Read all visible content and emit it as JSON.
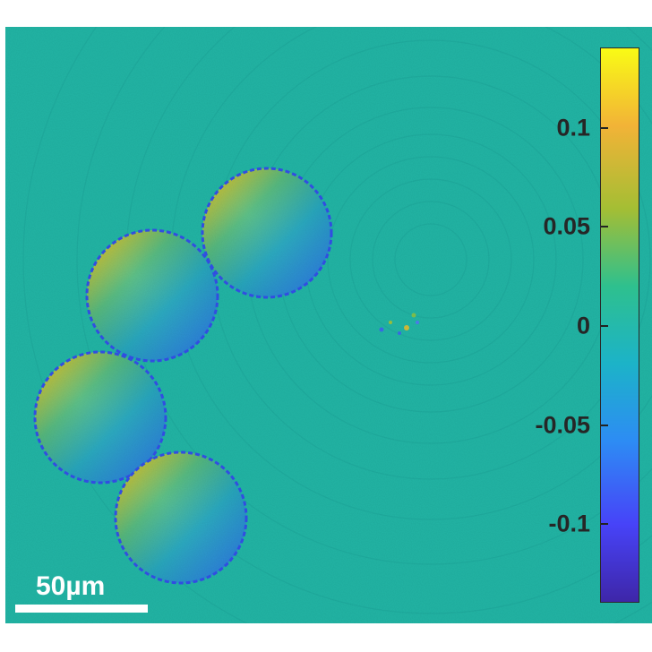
{
  "image": {
    "kind": "quantitative phase map of five microspheres",
    "background_color": "#22b5a5",
    "colormap": "parula"
  },
  "colorbar": {
    "ticks": [
      "0.1",
      "0.05",
      "0",
      "-0.05",
      "-0.1"
    ],
    "tick_values": [
      0.1,
      0.05,
      0,
      -0.05,
      -0.1
    ],
    "range": [
      -0.14,
      0.14
    ],
    "colors": [
      "#3e26a8",
      "#4743f8",
      "#2d8cf4",
      "#1cb3c8",
      "#2ec08e",
      "#a4be34",
      "#f2b337",
      "#f9fb15"
    ]
  },
  "scalebar": {
    "label": "50µm"
  }
}
